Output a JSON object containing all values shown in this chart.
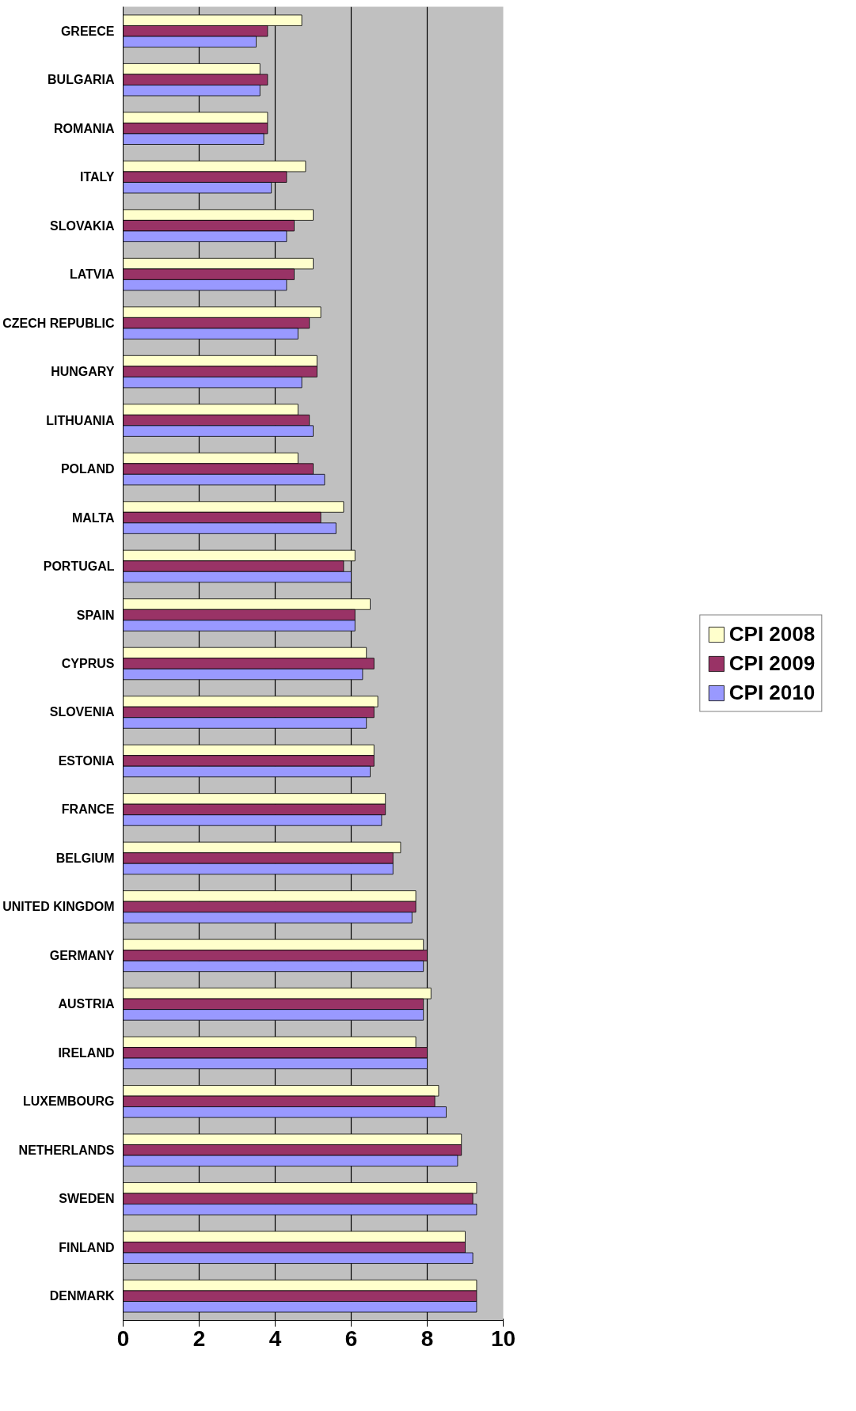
{
  "chart_data": {
    "type": "bar",
    "orientation": "horizontal",
    "categories": [
      "GREECE",
      "BULGARIA",
      "ROMANIA",
      "ITALY",
      "SLOVAKIA",
      "LATVIA",
      "CZECH REPUBLIC",
      "HUNGARY",
      "LITHUANIA",
      "POLAND",
      "MALTA",
      "PORTUGAL",
      "SPAIN",
      "CYPRUS",
      "SLOVENIA",
      "ESTONIA",
      "FRANCE",
      "BELGIUM",
      "UNITED KINGDOM",
      "GERMANY",
      "AUSTRIA",
      "IRELAND",
      "LUXEMBOURG",
      "NETHERLANDS",
      "SWEDEN",
      "FINLAND",
      "DENMARK"
    ],
    "series": [
      {
        "name": "CPI 2008",
        "color": "#ffffcc",
        "values": [
          4.7,
          3.6,
          3.8,
          4.8,
          5.0,
          5.0,
          5.2,
          5.1,
          4.6,
          4.6,
          5.8,
          6.1,
          6.5,
          6.4,
          6.7,
          6.6,
          6.9,
          7.3,
          7.7,
          7.9,
          8.1,
          7.7,
          8.3,
          8.9,
          9.3,
          9.0,
          9.3
        ]
      },
      {
        "name": "CPI 2009",
        "color": "#993366",
        "values": [
          3.8,
          3.8,
          3.8,
          4.3,
          4.5,
          4.5,
          4.9,
          5.1,
          4.9,
          5.0,
          5.2,
          5.8,
          6.1,
          6.6,
          6.6,
          6.6,
          6.9,
          7.1,
          7.7,
          8.0,
          7.9,
          8.0,
          8.2,
          8.9,
          9.2,
          9.0,
          9.3
        ]
      },
      {
        "name": "CPI 2010",
        "color": "#9999ff",
        "values": [
          3.5,
          3.6,
          3.7,
          3.9,
          4.3,
          4.3,
          4.6,
          4.7,
          5.0,
          5.3,
          5.6,
          6.0,
          6.1,
          6.3,
          6.4,
          6.5,
          6.8,
          7.1,
          7.6,
          7.9,
          7.9,
          8.0,
          8.5,
          8.8,
          9.3,
          9.2,
          9.3
        ]
      }
    ],
    "xlim": [
      0,
      10
    ],
    "xticks": [
      0,
      2,
      4,
      6,
      8,
      10
    ],
    "grid": "x",
    "legend": "right"
  }
}
